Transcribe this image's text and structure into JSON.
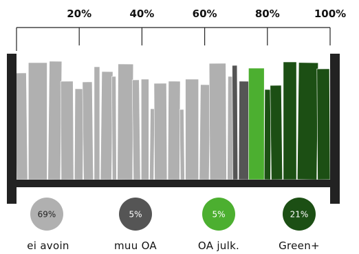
{
  "chart_data": {
    "type": "bar",
    "axis": {
      "ticks": [
        "20%",
        "40%",
        "60%",
        "80%",
        "100%"
      ],
      "tick_values": [
        20,
        40,
        60,
        80,
        100
      ],
      "range": [
        0,
        100
      ]
    },
    "categories": [
      "ei avoin",
      "muu OA",
      "OA julk.",
      "Green+"
    ],
    "values": [
      69,
      5,
      5,
      21
    ],
    "value_labels": [
      "69%",
      "5%",
      "5%",
      "21%"
    ],
    "colors": {
      "ei avoin": "#b0b0b0",
      "muu OA": "#555555",
      "OA julk.": "#4caf30",
      "Green+": "#1c4f14"
    },
    "shelf_color": "#222222"
  }
}
